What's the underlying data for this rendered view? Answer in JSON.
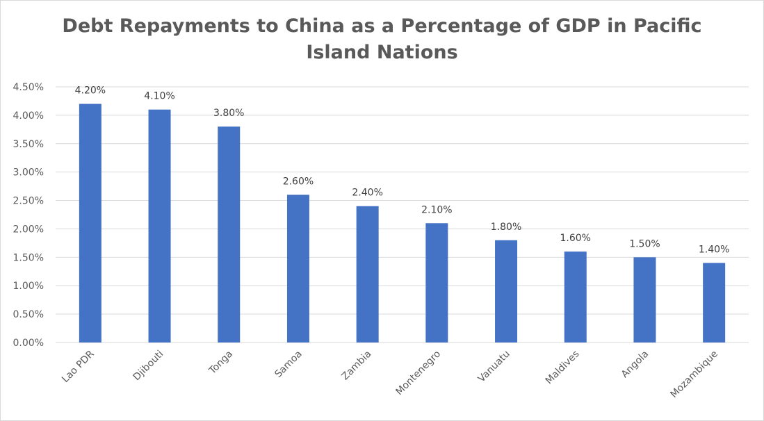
{
  "chart_data": {
    "type": "bar",
    "title_line1": "Debt Repayments to China as a Percentage of GDP in Pacific",
    "title_line2": "Island Nations",
    "categories": [
      "Lao PDR",
      "Djibouti",
      "Tonga",
      "Samoa",
      "Zambia",
      "Montenegro",
      "Vanuatu",
      "Maldives",
      "Angola",
      "Mozambique"
    ],
    "values": [
      4.2,
      4.1,
      3.8,
      2.6,
      2.4,
      2.1,
      1.8,
      1.6,
      1.5,
      1.4
    ],
    "data_labels": [
      "4.20%",
      "4.10%",
      "3.80%",
      "2.60%",
      "2.40%",
      "2.10%",
      "1.80%",
      "1.60%",
      "1.50%",
      "1.40%"
    ],
    "y_ticks": [
      0,
      0.5,
      1,
      1.5,
      2,
      2.5,
      3,
      3.5,
      4,
      4.5
    ],
    "y_tick_labels": [
      "0.00%",
      "0.50%",
      "1.00%",
      "1.50%",
      "2.00%",
      "2.50%",
      "3.00%",
      "3.50%",
      "4.00%",
      "4.50%"
    ],
    "ylim": [
      0,
      4.5
    ],
    "grid": true,
    "legend": "none",
    "bar_color": "#4472c4",
    "grid_color": "#d9d9d9",
    "text_color": "#595959"
  }
}
